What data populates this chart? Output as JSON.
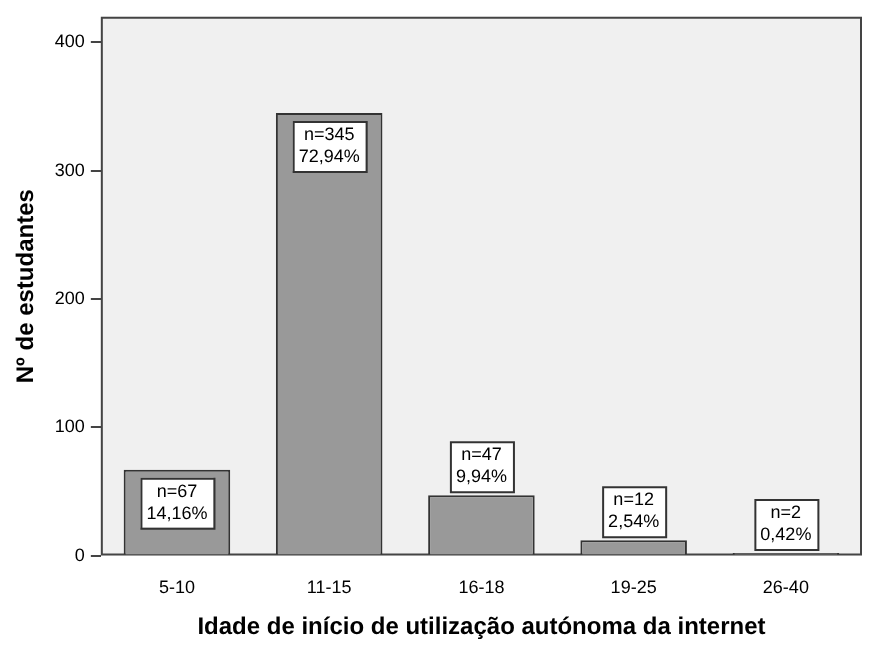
{
  "chart_data": {
    "type": "bar",
    "xlabel": "Idade de início de utilização autónoma da internet",
    "ylabel": "Nº de estudantes",
    "categories": [
      "5-10",
      "11-15",
      "16-18",
      "19-25",
      "26-40"
    ],
    "values": [
      67,
      345,
      47,
      12,
      2
    ],
    "value_labels": [
      "n=67\n14,16%",
      "n=345\n72,94%",
      "n=47\n9,94%",
      "n=12\n2,54%",
      "n=2\n0,42%"
    ],
    "color": "#999999",
    "ylim": [
      0,
      420
    ],
    "yticks": [
      0,
      100,
      200,
      300,
      400
    ],
    "grid": false,
    "legend": false
  }
}
